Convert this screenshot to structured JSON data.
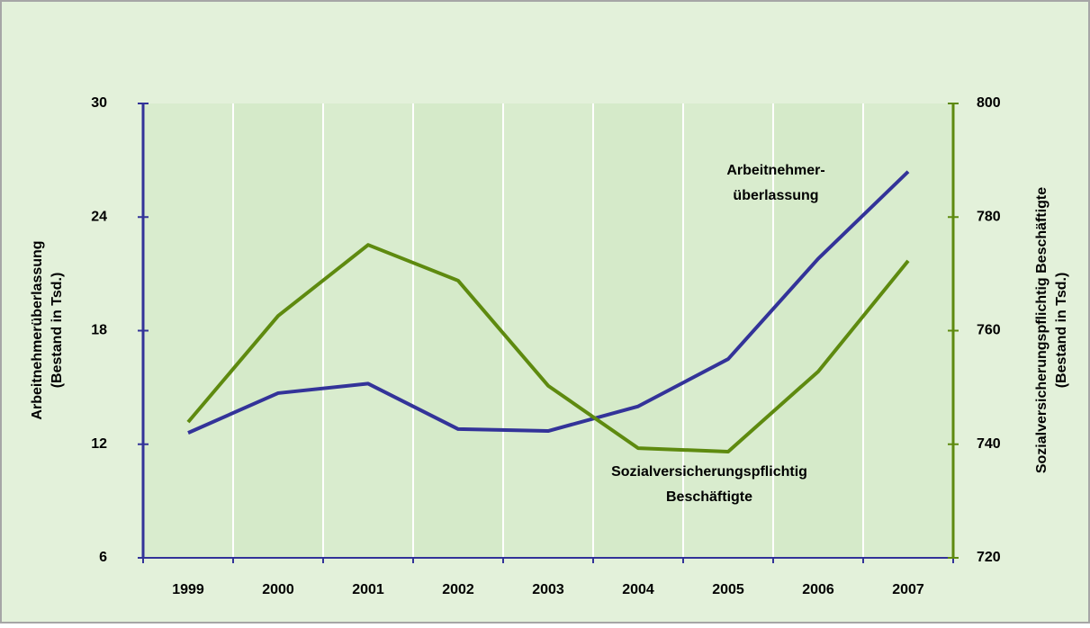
{
  "chart_data": {
    "type": "line",
    "categories": [
      "1999",
      "2000",
      "2001",
      "2002",
      "2003",
      "2004",
      "2005",
      "2006",
      "2007"
    ],
    "series": [
      {
        "name": "Arbeitnehmerüberlassung",
        "color": "#333399",
        "values": [
          12.6,
          14.7,
          15.2,
          12.8,
          12.7,
          14.0,
          16.5,
          21.8,
          26.4
        ]
      },
      {
        "name": "Sozialversicherungspflichtig Beschäftigte",
        "color": "#5e8a0f",
        "axis": "y2",
        "values": [
          743.9,
          762.6,
          775.1,
          768.8,
          750.3,
          739.3,
          738.7,
          752.8,
          772.3
        ]
      }
    ],
    "ylim": [
      6,
      30
    ],
    "yticks": [
      6,
      12,
      18,
      24,
      30
    ],
    "y2lim": [
      720,
      800
    ],
    "y2ticks": [
      720,
      740,
      760,
      780,
      800
    ],
    "ylabel": [
      "Arbeitnehmerüberlassung",
      "(Bestand in Tsd.)"
    ],
    "y2label": [
      "Sozialversicherungspflichtig Beschäftigte",
      "(Bestand in Tsd.)"
    ],
    "annotations": [
      {
        "lines": [
          "Arbeitnehmer-",
          "überlassung"
        ]
      },
      {
        "lines": [
          "Sozialversicherungspflichtig",
          "Beschäftigte"
        ]
      }
    ],
    "grid": true
  }
}
